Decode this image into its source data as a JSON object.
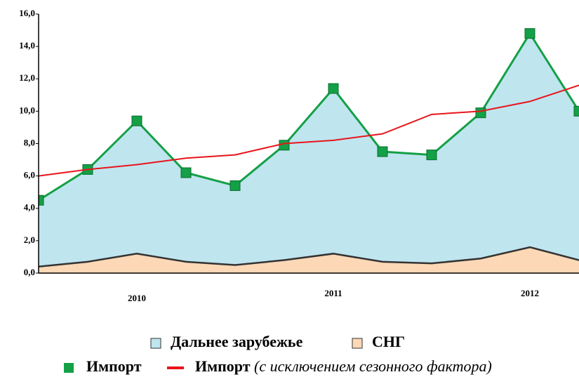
{
  "chart_data": {
    "type": "area",
    "categories": [
      null,
      null,
      "2010",
      null,
      null,
      null,
      "2011",
      null,
      null,
      null,
      "2012",
      null
    ],
    "ylim": [
      0,
      16
    ],
    "yticks": [
      {
        "value": 0,
        "label": "0,0"
      },
      {
        "value": 2,
        "label": "2,0"
      },
      {
        "value": 4,
        "label": "4,0"
      },
      {
        "value": 6,
        "label": "6,0"
      },
      {
        "value": 8,
        "label": "8,0"
      },
      {
        "value": 10,
        "label": "10,0"
      },
      {
        "value": 12,
        "label": "12,0"
      },
      {
        "value": 14,
        "label": "14,0"
      },
      {
        "value": 16,
        "label": "16,0"
      }
    ],
    "series": [
      {
        "name": "Дальнее зарубежье",
        "kind": "area",
        "color": "#bfe5ef",
        "values": [
          4.1,
          5.7,
          8.2,
          5.5,
          4.9,
          7.1,
          10.2,
          6.8,
          6.7,
          9.0,
          13.2,
          9.2
        ]
      },
      {
        "name": "СНГ",
        "kind": "area",
        "color": "#fcd8b6",
        "values": [
          0.4,
          0.7,
          1.2,
          0.7,
          0.5,
          0.8,
          1.2,
          0.7,
          0.6,
          0.9,
          1.6,
          0.8
        ]
      },
      {
        "name": "Импорт",
        "kind": "markers",
        "color": "#14a046",
        "values": [
          4.5,
          6.4,
          9.4,
          6.2,
          5.4,
          7.9,
          11.4,
          7.5,
          7.3,
          9.9,
          14.8,
          10.0
        ]
      },
      {
        "name": "Импорт (с исключением сезонного фактора)",
        "kind": "line",
        "color": "#e8151b",
        "values": [
          6.0,
          6.4,
          6.7,
          7.1,
          7.3,
          8.0,
          8.2,
          8.6,
          9.8,
          10.0,
          10.6,
          11.6
        ]
      }
    ]
  }
}
